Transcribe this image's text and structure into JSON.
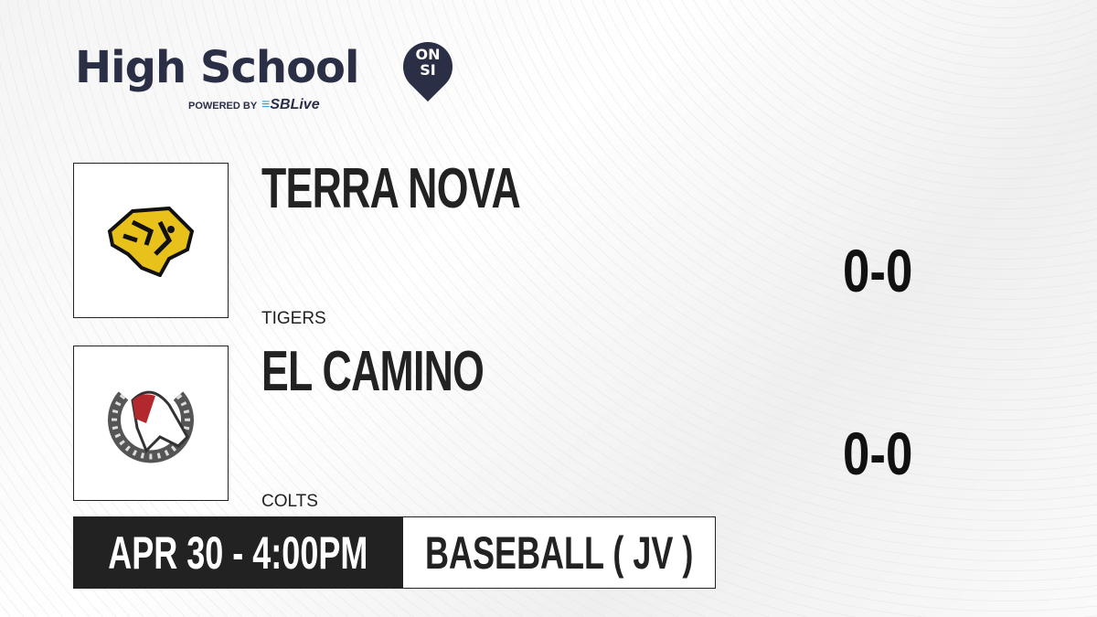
{
  "brand": {
    "logo_text": "High School",
    "badge_top": "ON",
    "badge_bottom": "SI",
    "powered_by": "POWERED BY",
    "partner_prefix": "S",
    "partner": "SBLive",
    "accent": "#29a9e1",
    "brand_color": "#2b2f45"
  },
  "teams": [
    {
      "name": "TERRA NOVA",
      "mascot": "TIGERS",
      "score": "0-0",
      "logo_icon": "tiger-logo-icon"
    },
    {
      "name": "EL CAMINO",
      "mascot": "COLTS",
      "score": "0-0",
      "logo_icon": "colt-horseshoe-logo-icon"
    }
  ],
  "game": {
    "datetime": "APR 30 - 4:00PM",
    "sport": "BASEBALL ( JV )"
  }
}
